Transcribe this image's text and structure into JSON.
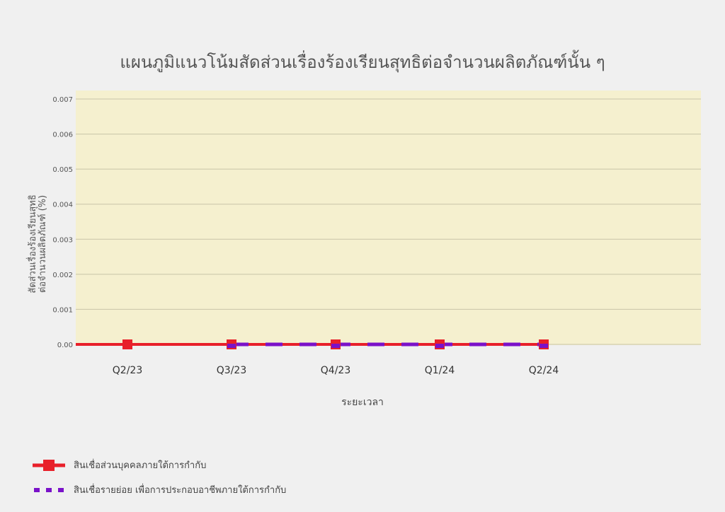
{
  "chart_data": {
    "type": "line",
    "title": "แผนภูมิแนวโน้มสัดส่วนเรื่องร้องเรียนสุทธิต่อจำนวนผลิตภัณฑ์นั้น ๆ",
    "xlabel": "ระยะเวลา",
    "ylabel_lines": [
      "สัดส่วนเรื่องร้องเรียนสุทธิ",
      "ต่อจำนวนผลิตภัณฑ์ (%)"
    ],
    "categories": [
      "Q2/23",
      "Q3/23",
      "Q4/23",
      "Q1/24",
      "Q2/24"
    ],
    "y_ticks": [
      "0.00",
      "0.001",
      "0.002",
      "0.003",
      "0.004",
      "0.005",
      "0.006",
      "0.007"
    ],
    "ylim": [
      0,
      0.007
    ],
    "grid": true,
    "legend_position": "bottom-left",
    "plot_background": "#f5f0cf",
    "series": [
      {
        "name": "สินเชื่อส่วนบุคคลภายใต้การกำกับ",
        "color": "#e8202a",
        "style": "solid-square-markers",
        "values": [
          0,
          0,
          0,
          0,
          0
        ]
      },
      {
        "name": "สินเชื่อรายย่อย เพื่อการประกอบอาชีพภายใต้การกำกับ",
        "color": "#7a12c9",
        "style": "dashed-square-markers",
        "values": [
          null,
          0,
          0,
          0,
          0
        ]
      }
    ]
  }
}
